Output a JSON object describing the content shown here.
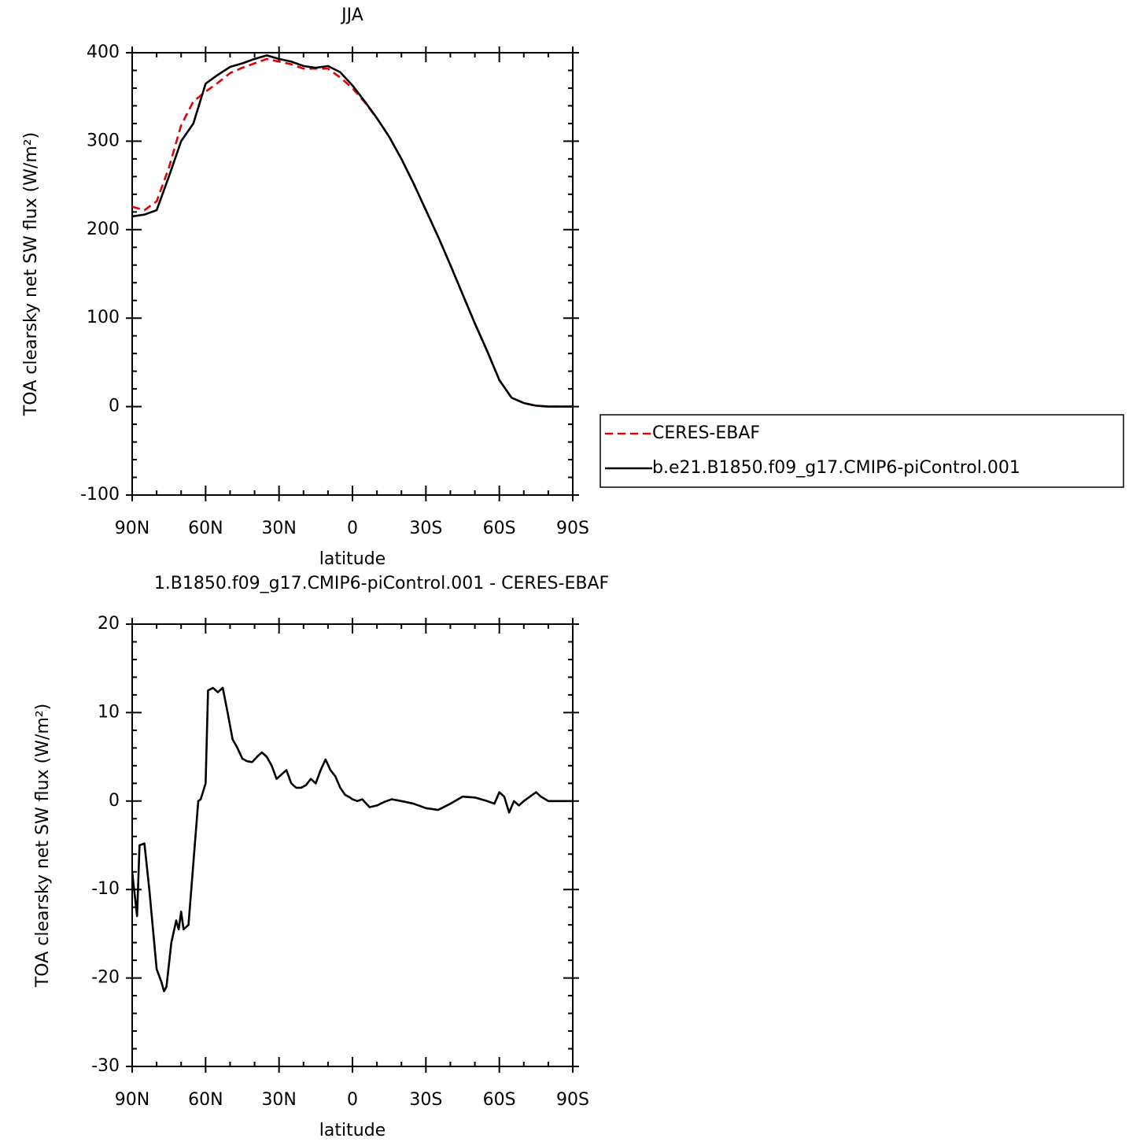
{
  "chart_data": [
    {
      "type": "line",
      "title": "JJA",
      "x_label": "latitude",
      "y_label": "TOA clearsky net SW flux (W/m²)",
      "x": [
        90,
        85,
        80,
        75,
        70,
        65,
        60,
        55,
        50,
        45,
        40,
        35,
        30,
        25,
        20,
        15,
        10,
        5,
        0,
        -5,
        -10,
        -15,
        -20,
        -25,
        -30,
        -35,
        -40,
        -45,
        -50,
        -55,
        -60,
        -65,
        -70,
        -75,
        -80,
        -85,
        -90
      ],
      "series": [
        {
          "name": "CERES-EBAF",
          "color": "#e00000",
          "dash": true,
          "values": [
            226,
            222,
            232,
            270,
            318,
            345,
            356,
            366,
            377,
            383,
            388,
            393,
            390,
            387,
            382,
            382,
            382,
            372,
            360,
            344,
            326,
            305,
            280,
            252,
            222,
            192,
            160,
            127,
            94,
            63,
            30,
            10,
            4,
            1,
            0,
            0,
            0
          ]
        },
        {
          "name": "b.e21.B1850.f09_g17.CMIP6-piControl.001",
          "color": "#000000",
          "dash": false,
          "values": [
            215,
            217,
            222,
            260,
            300,
            320,
            365,
            375,
            384,
            388,
            393,
            397,
            393,
            390,
            385,
            383,
            385,
            378,
            363,
            345,
            326,
            305,
            280,
            252,
            222,
            192,
            160,
            127,
            94,
            63,
            30,
            10,
            4,
            1,
            0,
            0,
            0
          ]
        }
      ],
      "xlim": [
        90,
        -90
      ],
      "xticks": [
        {
          "value": 90,
          "label": "90N"
        },
        {
          "value": 60,
          "label": "60N"
        },
        {
          "value": 30,
          "label": "30N"
        },
        0,
        {
          "value": -30,
          "label": "30S"
        },
        {
          "value": -60,
          "label": "60S"
        },
        {
          "value": -90,
          "label": "90S"
        }
      ],
      "xminorticks": [
        80,
        70,
        50,
        40,
        20,
        10,
        -10,
        -20,
        -40,
        -50,
        -70,
        -80
      ],
      "ylim": [
        -100,
        400
      ],
      "yticks": [
        -100,
        0,
        100,
        200,
        300,
        400
      ],
      "yminorticks": [
        -80,
        -60,
        -40,
        -20,
        20,
        40,
        60,
        80,
        120,
        140,
        160,
        180,
        220,
        240,
        260,
        280,
        320,
        340,
        360,
        380
      ],
      "legend": "outside-right"
    },
    {
      "type": "line",
      "title": "1.B1850.f09_g17.CMIP6-piControl.001 - CERES-EBAF",
      "x_label": "latitude",
      "y_label": "TOA clearsky net SW flux (W/m²)",
      "x": [
        90,
        88,
        87,
        85,
        83,
        82,
        80,
        78,
        77,
        76,
        74,
        72,
        71,
        70,
        69,
        67,
        65,
        63,
        62,
        60,
        59,
        57,
        55,
        53,
        51,
        49,
        47,
        45,
        43,
        41,
        39,
        37,
        35,
        33,
        31,
        29,
        27,
        25,
        23,
        21,
        19,
        17,
        15,
        13,
        11,
        9,
        7,
        5,
        3,
        1,
        0,
        -2,
        -4,
        -7,
        -10,
        -13,
        -16,
        -20,
        -25,
        -30,
        -35,
        -40,
        -45,
        -50,
        -55,
        -58,
        -60,
        -62,
        -64,
        -66,
        -68,
        -70,
        -75,
        -77,
        -80,
        -85,
        -90
      ],
      "series": [
        {
          "color": "#000000",
          "dash": false,
          "values": [
            -8,
            -13,
            -5,
            -4.8,
            -10,
            -13,
            -19,
            -20.5,
            -21.5,
            -21,
            -16,
            -13.5,
            -14.5,
            -12.5,
            -14.5,
            -14,
            -7,
            0,
            0.2,
            2,
            12.5,
            12.8,
            12.3,
            12.8,
            10,
            7,
            6,
            4.8,
            4.5,
            4.4,
            5,
            5.5,
            5,
            4,
            2.5,
            3,
            3.5,
            2,
            1.5,
            1.5,
            1.8,
            2.5,
            2,
            3.5,
            4.7,
            3.5,
            2.8,
            1.5,
            0.7,
            0.4,
            0.2,
            0,
            0.2,
            -0.7,
            -0.5,
            -0.1,
            0.2,
            0,
            -0.3,
            -0.8,
            -1,
            -0.3,
            0.5,
            0.4,
            0,
            -0.3,
            1,
            0.5,
            -1.3,
            0,
            -0.5,
            0,
            1,
            0.5,
            0,
            0,
            0
          ]
        }
      ],
      "xlim": [
        90,
        -90
      ],
      "xticks": [
        {
          "value": 90,
          "label": "90N"
        },
        {
          "value": 60,
          "label": "60N"
        },
        {
          "value": 30,
          "label": "30N"
        },
        0,
        {
          "value": -30,
          "label": "30S"
        },
        {
          "value": -60,
          "label": "60S"
        },
        {
          "value": -90,
          "label": "90S"
        }
      ],
      "xminorticks": [
        80,
        70,
        50,
        40,
        20,
        10,
        -10,
        -20,
        -40,
        -50,
        -70,
        -80
      ],
      "ylim": [
        -30,
        20
      ],
      "yticks": [
        -30,
        -20,
        -10,
        0,
        10,
        20
      ],
      "yminorticks": [
        -28,
        -26,
        -24,
        -22,
        -18,
        -16,
        -14,
        -12,
        -8,
        -6,
        -4,
        -2,
        2,
        4,
        6,
        8,
        12,
        14,
        16,
        18
      ]
    }
  ]
}
